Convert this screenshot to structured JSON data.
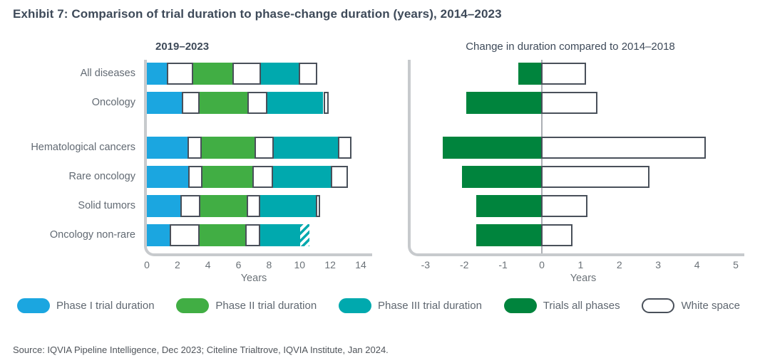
{
  "title": "Exhibit 7: Comparison of trial duration to phase-change duration (years), 2014–2023",
  "source": "Source: IQVIA Pipeline Intelligence, Dec 2023; Citeline Trialtrove, IQVIA Institute, Jan 2024.",
  "colors": {
    "phase1_blue": "#1BA6E0",
    "phase2_green": "#41AE44",
    "phase3_teal": "#00A9AE",
    "all_phases_dark_green": "#00843D",
    "white_space_fill": "#FFFFFF",
    "white_space_border": "#49505A",
    "axis_gray": "#C7CACD",
    "title_text": "#3E4A59",
    "label_gray": "#626A73"
  },
  "legend": {
    "items": [
      {
        "label": "Phase I trial duration",
        "style": "phase1"
      },
      {
        "label": "Phase II trial duration",
        "style": "phase2"
      },
      {
        "label": "Phase III trial duration",
        "style": "phase3"
      },
      {
        "label": "Trials all phases",
        "style": "allphases"
      },
      {
        "label": "White space",
        "style": "white"
      }
    ]
  },
  "chart_data": [
    {
      "type": "bar",
      "subtype": "stacked-horizontal",
      "title": "2019–2023",
      "xlabel": "Years",
      "xlim": [
        0,
        14
      ],
      "xticks": [
        0,
        2,
        4,
        6,
        8,
        10,
        12,
        14
      ],
      "grid": false,
      "categories": [
        "All diseases",
        "Oncology",
        "Hematological cancers",
        "Rare oncology",
        "Solid tumors",
        "Oncology non-rare"
      ],
      "series": [
        {
          "name": "Phase I trial duration",
          "style": "phase1",
          "values": [
            1.3,
            2.3,
            2.65,
            2.7,
            2.2,
            1.5
          ]
        },
        {
          "name": "White space (Phase I to II)",
          "style": "white",
          "values": [
            1.75,
            1.15,
            0.95,
            0.95,
            1.3,
            1.95
          ]
        },
        {
          "name": "Phase II trial duration",
          "style": "phase2",
          "values": [
            2.55,
            3.15,
            3.45,
            3.25,
            3.05,
            3.0
          ]
        },
        {
          "name": "White space (Phase II to III)",
          "style": "white",
          "values": [
            1.85,
            1.3,
            1.25,
            1.35,
            0.85,
            0.95
          ]
        },
        {
          "name": "Phase III trial duration",
          "style": "phase3",
          "values": [
            2.5,
            3.65,
            4.2,
            3.8,
            3.65,
            2.65
          ]
        },
        {
          "name": "White space (post Phase III)",
          "style": "white",
          "values": [
            1.2,
            0.35,
            0.9,
            1.1,
            0.3,
            0
          ]
        },
        {
          "name": "Phase III trial duration (hatched estimate)",
          "style": "hatch",
          "values": [
            0,
            0,
            0,
            0,
            0,
            0.6
          ]
        }
      ],
      "totals": [
        11.15,
        11.9,
        13.4,
        13.15,
        11.35,
        10.65
      ]
    },
    {
      "type": "bar",
      "subtype": "diverging-horizontal",
      "title": "Change in duration compared to 2014–2018",
      "xlabel": "Years",
      "xlim": [
        -3.4,
        5.2
      ],
      "xticks": [
        -3,
        -2,
        -1,
        0,
        1,
        2,
        3,
        4,
        5
      ],
      "grid": false,
      "zero_line": true,
      "categories": [
        "All diseases",
        "Oncology",
        "Hematological cancers",
        "Rare oncology",
        "Solid tumors",
        "Oncology non-rare"
      ],
      "series": [
        {
          "name": "Trials all phases",
          "style": "allphases",
          "values": [
            -0.6,
            -1.95,
            -2.55,
            -2.05,
            -1.7,
            -1.7
          ]
        },
        {
          "name": "White space",
          "style": "white",
          "values": [
            1.15,
            1.45,
            4.25,
            2.8,
            1.2,
            0.8
          ]
        }
      ]
    }
  ]
}
